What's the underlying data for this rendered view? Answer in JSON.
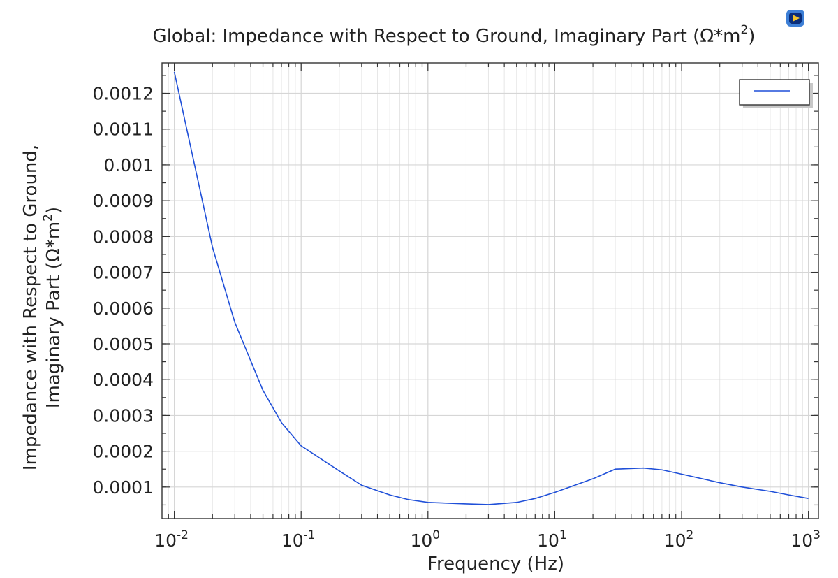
{
  "chart_data": {
    "type": "line",
    "title": "Global: Impedance with Respect to Ground, Imaginary Part (Ω*m²)",
    "title_main": "Global: Impedance with Respect to Ground, Imaginary Part (Ω*m",
    "title_sup": "2",
    "title_end": ")",
    "xlabel": "Frequency (Hz)",
    "ylabel_line1": "Impedance with Respect to Ground,",
    "ylabel_line2_main": "Imaginary Part (Ω*m",
    "ylabel_line2_sup": "2",
    "ylabel_line2_end": ")",
    "x_scale": "log",
    "xlim": [
      0.008,
      1200
    ],
    "ylim": [
      1.18e-05,
      0.001285
    ],
    "grid": true,
    "legend_placement": "top-right",
    "x_ticks": [
      {
        "value": 0.01,
        "base": "10",
        "exp": "-2"
      },
      {
        "value": 0.1,
        "base": "10",
        "exp": "-1"
      },
      {
        "value": 1,
        "base": "10",
        "exp": "0"
      },
      {
        "value": 10,
        "base": "10",
        "exp": "1"
      },
      {
        "value": 100,
        "base": "10",
        "exp": "2"
      },
      {
        "value": 1000,
        "base": "10",
        "exp": "3"
      }
    ],
    "y_ticks": [
      {
        "value": 0.0001,
        "label": "0.0001"
      },
      {
        "value": 0.0002,
        "label": "0.0002"
      },
      {
        "value": 0.0003,
        "label": "0.0003"
      },
      {
        "value": 0.0004,
        "label": "0.0004"
      },
      {
        "value": 0.0005,
        "label": "0.0005"
      },
      {
        "value": 0.0006,
        "label": "0.0006"
      },
      {
        "value": 0.0007,
        "label": "0.0007"
      },
      {
        "value": 0.0008,
        "label": "0.0008"
      },
      {
        "value": 0.0009,
        "label": "0.0009"
      },
      {
        "value": 0.001,
        "label": "0.001"
      },
      {
        "value": 0.0011,
        "label": "0.0011"
      },
      {
        "value": 0.0012,
        "label": "0.0012"
      }
    ],
    "series": [
      {
        "color": "#1f4fd8",
        "x": [
          0.01,
          0.02,
          0.03,
          0.05,
          0.07,
          0.1,
          0.2,
          0.3,
          0.5,
          0.7,
          1,
          2,
          3,
          5,
          7,
          10,
          20,
          30,
          50,
          70,
          100,
          200,
          300,
          500,
          700,
          1000
        ],
        "y": [
          0.00126,
          0.00077,
          0.00056,
          0.00037,
          0.00028,
          0.000215,
          0.000145,
          0.000105,
          7.8e-05,
          6.5e-05,
          5.7e-05,
          5.3e-05,
          5.1e-05,
          5.7e-05,
          6.8e-05,
          8.5e-05,
          0.000123,
          0.00015,
          0.000153,
          0.000148,
          0.000136,
          0.000112,
          0.0001,
          8.8e-05,
          7.8e-05,
          6.8e-05
        ]
      }
    ]
  }
}
